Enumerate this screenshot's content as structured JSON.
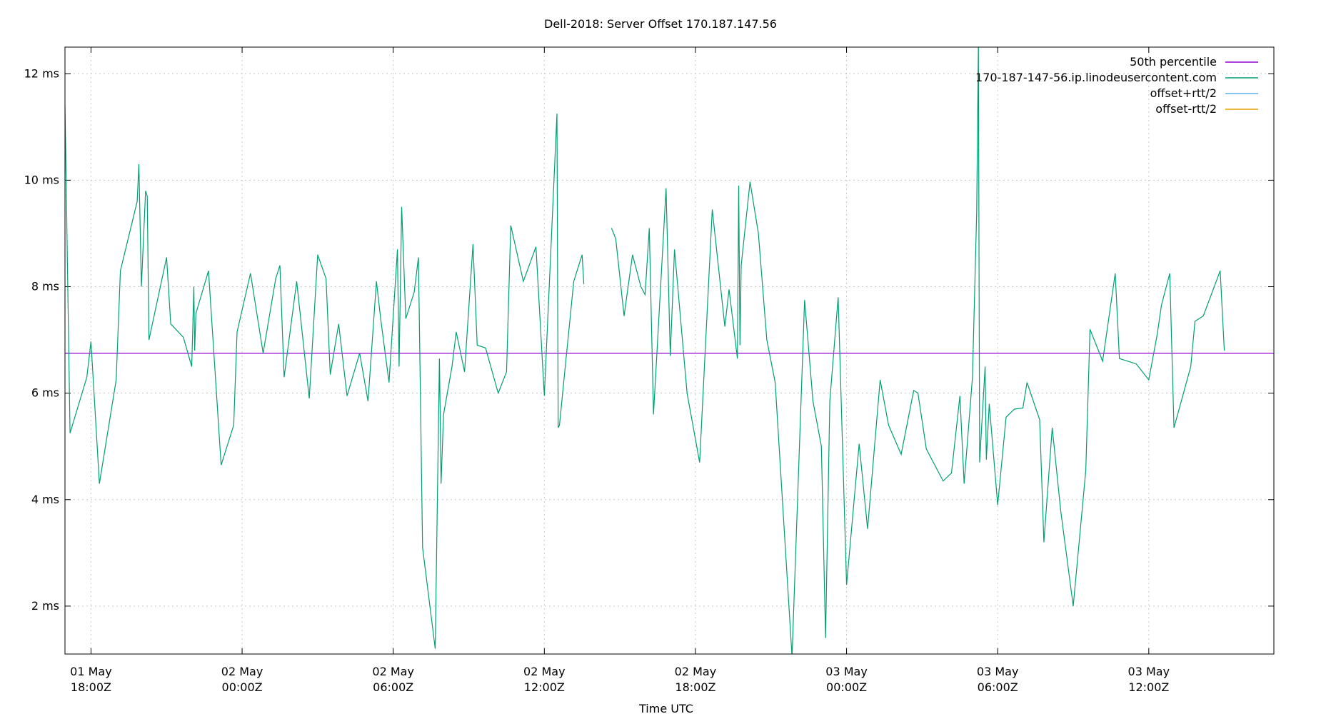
{
  "chart_data": {
    "type": "line",
    "title": "Dell-2018: Server Offset 170.187.147.56",
    "xlabel": "Time UTC",
    "ylabel": "",
    "xlim": [
      "2023-05-01T16:58Z",
      "2023-05-03T16:58Z"
    ],
    "ylim": [
      1.1,
      12.5
    ],
    "grid": true,
    "legend_position": "top-right",
    "y_ticks": [
      {
        "value": 2,
        "label": "2 ms"
      },
      {
        "value": 4,
        "label": "4 ms"
      },
      {
        "value": 6,
        "label": "6 ms"
      },
      {
        "value": 8,
        "label": "8 ms"
      },
      {
        "value": 10,
        "label": "10 ms"
      },
      {
        "value": 12,
        "label": "12 ms"
      }
    ],
    "x_ticks": [
      {
        "value": "2023-05-01T18:00Z",
        "line1": "01 May",
        "line2": "18:00Z"
      },
      {
        "value": "2023-05-02T00:00Z",
        "line1": "02 May",
        "line2": "00:00Z"
      },
      {
        "value": "2023-05-02T06:00Z",
        "line1": "02 May",
        "line2": "06:00Z"
      },
      {
        "value": "2023-05-02T12:00Z",
        "line1": "02 May",
        "line2": "12:00Z"
      },
      {
        "value": "2023-05-02T18:00Z",
        "line1": "02 May",
        "line2": "18:00Z"
      },
      {
        "value": "2023-05-03T00:00Z",
        "line1": "03 May",
        "line2": "00:00Z"
      },
      {
        "value": "2023-05-03T06:00Z",
        "line1": "03 May",
        "line2": "06:00Z"
      },
      {
        "value": "2023-05-03T12:00Z",
        "line1": "03 May",
        "line2": "12:00Z"
      }
    ],
    "series": [
      {
        "name": "50th percentile",
        "color": "#9400d3",
        "kind": "hline",
        "value": 6.75
      },
      {
        "name": "170-187-147-56.ip.linodeusercontent.com",
        "color": "#009e73",
        "kind": "line",
        "segments": [
          [
            [
              "2023-05-01T16:58Z",
              11.4
            ],
            [
              "2023-05-01T17:10Z",
              5.25
            ],
            [
              "2023-05-01T17:50Z",
              6.3
            ],
            [
              "2023-05-01T18:00Z",
              6.97
            ],
            [
              "2023-05-01T18:20Z",
              4.3
            ],
            [
              "2023-05-01T19:00Z",
              6.25
            ],
            [
              "2023-05-01T19:10Z",
              8.3
            ],
            [
              "2023-05-01T19:50Z",
              9.6
            ],
            [
              "2023-05-01T19:54Z",
              10.3
            ],
            [
              "2023-05-01T20:00Z",
              8.0
            ],
            [
              "2023-05-01T20:10Z",
              9.8
            ],
            [
              "2023-05-01T20:14Z",
              9.7
            ],
            [
              "2023-05-01T20:18Z",
              7.0
            ],
            [
              "2023-05-01T21:00Z",
              8.55
            ],
            [
              "2023-05-01T21:10Z",
              7.3
            ],
            [
              "2023-05-01T21:40Z",
              7.05
            ],
            [
              "2023-05-01T22:00Z",
              6.5
            ],
            [
              "2023-05-01T22:05Z",
              8.0
            ],
            [
              "2023-05-01T22:07Z",
              6.8
            ],
            [
              "2023-05-01T22:10Z",
              7.5
            ],
            [
              "2023-05-01T22:40Z",
              8.3
            ],
            [
              "2023-05-01T23:10Z",
              4.65
            ],
            [
              "2023-05-01T23:40Z",
              5.4
            ],
            [
              "2023-05-01T23:48Z",
              7.15
            ],
            [
              "2023-05-02T00:20Z",
              8.25
            ],
            [
              "2023-05-02T00:50Z",
              6.75
            ],
            [
              "2023-05-02T01:20Z",
              8.15
            ],
            [
              "2023-05-02T01:30Z",
              8.4
            ],
            [
              "2023-05-02T01:40Z",
              6.3
            ],
            [
              "2023-05-02T02:10Z",
              8.1
            ],
            [
              "2023-05-02T02:40Z",
              5.9
            ],
            [
              "2023-05-02T03:00Z",
              8.6
            ],
            [
              "2023-05-02T03:20Z",
              8.15
            ],
            [
              "2023-05-02T03:30Z",
              6.35
            ],
            [
              "2023-05-02T03:50Z",
              7.3
            ],
            [
              "2023-05-02T04:10Z",
              5.95
            ],
            [
              "2023-05-02T04:40Z",
              6.75
            ],
            [
              "2023-05-02T05:00Z",
              5.85
            ],
            [
              "2023-05-02T05:20Z",
              8.1
            ],
            [
              "2023-05-02T05:30Z",
              7.4
            ],
            [
              "2023-05-02T05:50Z",
              6.2
            ],
            [
              "2023-05-02T06:10Z",
              8.7
            ],
            [
              "2023-05-02T06:14Z",
              6.5
            ],
            [
              "2023-05-02T06:20Z",
              9.5
            ],
            [
              "2023-05-02T06:30Z",
              7.4
            ],
            [
              "2023-05-02T06:50Z",
              7.9
            ],
            [
              "2023-05-02T07:00Z",
              8.55
            ],
            [
              "2023-05-02T07:10Z",
              3.1
            ],
            [
              "2023-05-02T07:40Z",
              1.2
            ],
            [
              "2023-05-02T07:50Z",
              6.65
            ],
            [
              "2023-05-02T07:54Z",
              4.3
            ],
            [
              "2023-05-02T08:00Z",
              5.6
            ],
            [
              "2023-05-02T08:20Z",
              6.5
            ],
            [
              "2023-05-02T08:30Z",
              7.15
            ],
            [
              "2023-05-02T08:50Z",
              6.4
            ],
            [
              "2023-05-02T09:10Z",
              8.8
            ],
            [
              "2023-05-02T09:20Z",
              6.9
            ],
            [
              "2023-05-02T09:40Z",
              6.85
            ],
            [
              "2023-05-02T10:10Z",
              6.0
            ],
            [
              "2023-05-02T10:30Z",
              6.4
            ],
            [
              "2023-05-02T10:40Z",
              9.15
            ],
            [
              "2023-05-02T11:10Z",
              8.1
            ],
            [
              "2023-05-02T11:40Z",
              8.75
            ],
            [
              "2023-05-02T12:00Z",
              5.95
            ],
            [
              "2023-05-02T12:30Z",
              11.25
            ],
            [
              "2023-05-02T12:33Z",
              5.35
            ],
            [
              "2023-05-02T12:36Z",
              5.4
            ],
            [
              "2023-05-02T13:10Z",
              8.1
            ],
            [
              "2023-05-02T13:30Z",
              8.6
            ],
            [
              "2023-05-02T13:34Z",
              8.05
            ]
          ],
          [
            [
              "2023-05-02T14:40Z",
              9.1
            ],
            [
              "2023-05-02T14:50Z",
              8.9
            ],
            [
              "2023-05-02T15:10Z",
              7.45
            ],
            [
              "2023-05-02T15:30Z",
              8.6
            ],
            [
              "2023-05-02T15:50Z",
              8.0
            ],
            [
              "2023-05-02T16:00Z",
              7.85
            ],
            [
              "2023-05-02T16:10Z",
              9.1
            ],
            [
              "2023-05-02T16:20Z",
              5.6
            ],
            [
              "2023-05-02T16:50Z",
              9.85
            ],
            [
              "2023-05-02T17:00Z",
              6.7
            ],
            [
              "2023-05-02T17:10Z",
              8.7
            ],
            [
              "2023-05-02T17:40Z",
              6.0
            ],
            [
              "2023-05-02T18:10Z",
              4.7
            ],
            [
              "2023-05-02T18:40Z",
              9.45
            ],
            [
              "2023-05-02T19:10Z",
              7.25
            ],
            [
              "2023-05-02T19:20Z",
              7.95
            ],
            [
              "2023-05-02T19:40Z",
              6.65
            ],
            [
              "2023-05-02T19:43Z",
              9.9
            ],
            [
              "2023-05-02T19:46Z",
              6.9
            ],
            [
              "2023-05-02T19:49Z",
              8.4
            ],
            [
              "2023-05-02T20:10Z",
              9.97
            ],
            [
              "2023-05-02T20:30Z",
              9.0
            ],
            [
              "2023-05-02T20:50Z",
              7.0
            ],
            [
              "2023-05-02T21:10Z",
              6.2
            ],
            [
              "2023-05-02T21:50Z",
              1.05
            ],
            [
              "2023-05-02T22:20Z",
              7.75
            ],
            [
              "2023-05-02T22:40Z",
              5.85
            ],
            [
              "2023-05-02T23:00Z",
              5.0
            ],
            [
              "2023-05-02T23:10Z",
              1.4
            ],
            [
              "2023-05-02T23:20Z",
              5.85
            ],
            [
              "2023-05-02T23:40Z",
              7.8
            ],
            [
              "2023-05-03T00:00Z",
              2.4
            ],
            [
              "2023-05-03T00:30Z",
              5.05
            ],
            [
              "2023-05-03T00:50Z",
              3.45
            ],
            [
              "2023-05-03T01:20Z",
              6.25
            ],
            [
              "2023-05-03T01:40Z",
              5.4
            ],
            [
              "2023-05-03T02:10Z",
              4.85
            ],
            [
              "2023-05-03T02:40Z",
              6.05
            ],
            [
              "2023-05-03T02:50Z",
              6.0
            ],
            [
              "2023-05-03T03:10Z",
              4.95
            ],
            [
              "2023-05-03T03:50Z",
              4.35
            ],
            [
              "2023-05-03T04:10Z",
              4.5
            ],
            [
              "2023-05-03T04:30Z",
              5.95
            ],
            [
              "2023-05-03T04:40Z",
              4.3
            ],
            [
              "2023-05-03T05:00Z",
              6.3
            ],
            [
              "2023-05-03T05:10Z",
              9.4
            ],
            [
              "2023-05-03T05:14Z",
              12.6
            ],
            [
              "2023-05-03T05:17Z",
              4.7
            ],
            [
              "2023-05-03T05:30Z",
              6.5
            ],
            [
              "2023-05-03T05:33Z",
              4.75
            ],
            [
              "2023-05-03T05:40Z",
              5.8
            ],
            [
              "2023-05-03T06:00Z",
              3.9
            ],
            [
              "2023-05-03T06:20Z",
              5.55
            ],
            [
              "2023-05-03T06:40Z",
              5.7
            ],
            [
              "2023-05-03T07:00Z",
              5.72
            ],
            [
              "2023-05-03T07:10Z",
              6.2
            ],
            [
              "2023-05-03T07:40Z",
              5.5
            ],
            [
              "2023-05-03T07:50Z",
              3.2
            ],
            [
              "2023-05-03T08:10Z",
              5.35
            ],
            [
              "2023-05-03T08:30Z",
              3.8
            ],
            [
              "2023-05-03T09:00Z",
              2.0
            ],
            [
              "2023-05-03T09:30Z",
              4.55
            ],
            [
              "2023-05-03T09:40Z",
              7.2
            ],
            [
              "2023-05-03T10:10Z",
              6.6
            ],
            [
              "2023-05-03T10:40Z",
              8.25
            ],
            [
              "2023-05-03T10:50Z",
              6.65
            ],
            [
              "2023-05-03T11:30Z",
              6.55
            ],
            [
              "2023-05-03T12:00Z",
              6.25
            ],
            [
              "2023-05-03T12:20Z",
              7.1
            ],
            [
              "2023-05-03T12:30Z",
              7.65
            ],
            [
              "2023-05-03T12:50Z",
              8.25
            ],
            [
              "2023-05-03T13:00Z",
              5.35
            ],
            [
              "2023-05-03T13:40Z",
              6.5
            ],
            [
              "2023-05-03T13:50Z",
              7.35
            ],
            [
              "2023-05-03T14:10Z",
              7.45
            ],
            [
              "2023-05-03T14:50Z",
              8.3
            ],
            [
              "2023-05-03T15:00Z",
              6.8
            ]
          ]
        ]
      },
      {
        "name": "offset+rtt/2",
        "color": "#56b4e9",
        "kind": "legend-only"
      },
      {
        "name": "offset-rtt/2",
        "color": "#e69f00",
        "kind": "legend-only"
      }
    ]
  }
}
